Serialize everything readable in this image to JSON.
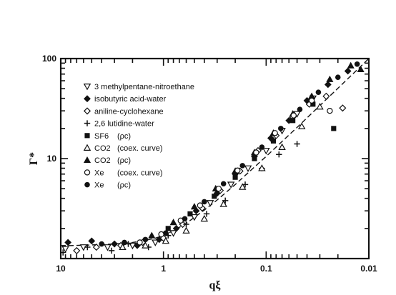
{
  "chart_data": {
    "type": "scatter",
    "title": "",
    "xlabel": "qξ",
    "ylabel": "Γ*",
    "x_scale": "log",
    "y_scale": "log",
    "x_reversed": true,
    "xlim": [
      10,
      0.01
    ],
    "ylim": [
      1,
      100
    ],
    "x_tick_labels": [
      "10",
      "1",
      "0.1",
      "0.01"
    ],
    "y_tick_labels": [
      "10",
      "100"
    ],
    "grid": false,
    "legend_position": "top-left",
    "series": [
      {
        "name": "3 methylpentane-nitroethane",
        "marker": "triangle-down-open",
        "x": [
          9.0,
          6.0,
          3.5,
          2.0,
          1.2,
          0.8,
          0.5,
          0.35,
          0.22,
          0.15,
          0.1,
          0.07,
          0.05,
          0.035
        ],
        "y": [
          1.25,
          1.3,
          1.3,
          1.35,
          1.45,
          1.8,
          2.6,
          3.6,
          5.5,
          8.0,
          12.0,
          19.0,
          28.0,
          40.0
        ]
      },
      {
        "name": "isobutyric acid-water",
        "marker": "diamond-filled",
        "x": [
          8.5,
          5.0,
          3.0,
          1.8,
          1.1,
          0.75,
          0.48,
          0.3,
          0.2,
          0.13,
          0.09,
          0.06,
          0.04,
          0.025,
          0.016
        ],
        "y": [
          1.45,
          1.5,
          1.4,
          1.35,
          1.55,
          2.0,
          3.0,
          4.5,
          7.0,
          10.5,
          16.0,
          24.0,
          38.0,
          55.0,
          75.0
        ]
      },
      {
        "name": "aniline-cyclohexane",
        "marker": "diamond-open",
        "x": [
          7.0,
          4.5,
          2.6,
          1.6,
          1.0,
          0.65,
          0.42,
          0.28,
          0.18,
          0.12,
          0.08,
          0.055,
          0.038,
          0.026,
          0.018
        ],
        "y": [
          1.2,
          1.3,
          1.35,
          1.45,
          1.6,
          2.2,
          3.2,
          4.8,
          7.5,
          12.0,
          17.0,
          26.0,
          35.0,
          42.0,
          32.0
        ]
      },
      {
        "name": "2,6 lutidine-water",
        "marker": "plus",
        "x": [
          9.5,
          5.5,
          3.2,
          2.2,
          1.4,
          0.9,
          0.6,
          0.38,
          0.25,
          0.16,
          0.11,
          0.075,
          0.05
        ],
        "y": [
          1.15,
          1.3,
          1.2,
          1.4,
          1.3,
          1.7,
          2.2,
          2.8,
          3.8,
          5.5,
          8.0,
          11.0,
          14.0
        ]
      },
      {
        "name": "SF6 (ρc)",
        "marker": "square-filled",
        "x": [
          0.9,
          0.55,
          0.32,
          0.2,
          0.13,
          0.085,
          0.055,
          0.035,
          0.022
        ],
        "y": [
          2.0,
          2.8,
          4.2,
          6.5,
          10.0,
          15.0,
          24.0,
          35.0,
          20.0
        ]
      },
      {
        "name": "CO2 (coex. curve)",
        "marker": "triangle-up-open",
        "x": [
          2.5,
          1.5,
          0.95,
          0.6,
          0.4,
          0.26,
          0.17,
          0.11,
          0.07,
          0.045,
          0.03
        ],
        "y": [
          1.3,
          1.35,
          1.5,
          1.9,
          2.5,
          3.5,
          5.2,
          8.0,
          13.0,
          21.0,
          33.0
        ]
      },
      {
        "name": "CO2 (ρc)",
        "marker": "triangle-up-filled",
        "x": [
          1.3,
          0.8,
          0.5,
          0.31,
          0.2,
          0.13,
          0.085,
          0.055,
          0.036,
          0.024,
          0.015,
          0.012
        ],
        "y": [
          1.7,
          2.3,
          3.3,
          5.0,
          7.5,
          11.5,
          18.0,
          28.0,
          42.0,
          62.0,
          85.0,
          78.0
        ]
      },
      {
        "name": "Xe (coex. curve)",
        "marker": "circle-open",
        "x": [
          1.7,
          1.05,
          0.68,
          0.44,
          0.29,
          0.19,
          0.125,
          0.082,
          0.054,
          0.036,
          0.024
        ],
        "y": [
          1.45,
          1.75,
          2.4,
          3.4,
          5.0,
          7.6,
          11.5,
          18.0,
          27.0,
          38.0,
          30.0
        ]
      },
      {
        "name": "Xe (ρc)",
        "marker": "circle-filled",
        "x": [
          4.0,
          2.4,
          1.5,
          0.95,
          0.62,
          0.4,
          0.26,
          0.17,
          0.11,
          0.072,
          0.047,
          0.031,
          0.02,
          0.013
        ],
        "y": [
          1.4,
          1.45,
          1.55,
          1.8,
          2.5,
          3.7,
          5.6,
          8.5,
          13.0,
          20.0,
          31.0,
          46.0,
          65.0,
          88.0
        ]
      }
    ],
    "fit_line": {
      "style": "dashed",
      "x": [
        10,
        8,
        6,
        4,
        3,
        2,
        1.5,
        1.2,
        1,
        0.8,
        0.6,
        0.4,
        0.3,
        0.2,
        0.1,
        0.05,
        0.02,
        0.01
      ],
      "y": [
        1.35,
        1.35,
        1.36,
        1.38,
        1.4,
        1.45,
        1.52,
        1.6,
        1.7,
        1.9,
        2.25,
        3.05,
        3.85,
        5.5,
        10.5,
        20.5,
        50.5,
        100
      ]
    },
    "legend_entries": [
      {
        "label": "3 methylpentane-nitroethane",
        "qualifier": ""
      },
      {
        "label": "isobutyric acid-water",
        "qualifier": ""
      },
      {
        "label": "aniline-cyclohexane",
        "qualifier": ""
      },
      {
        "label": "2,6 lutidine-water",
        "qualifier": ""
      },
      {
        "label": "SF6",
        "qualifier": "(ρc)"
      },
      {
        "label": "CO2",
        "qualifier": "(coex. curve)"
      },
      {
        "label": "CO2",
        "qualifier": "(ρc)"
      },
      {
        "label": "Xe",
        "qualifier": "(coex. curve)"
      },
      {
        "label": "Xe",
        "qualifier": "(ρc)"
      }
    ]
  }
}
